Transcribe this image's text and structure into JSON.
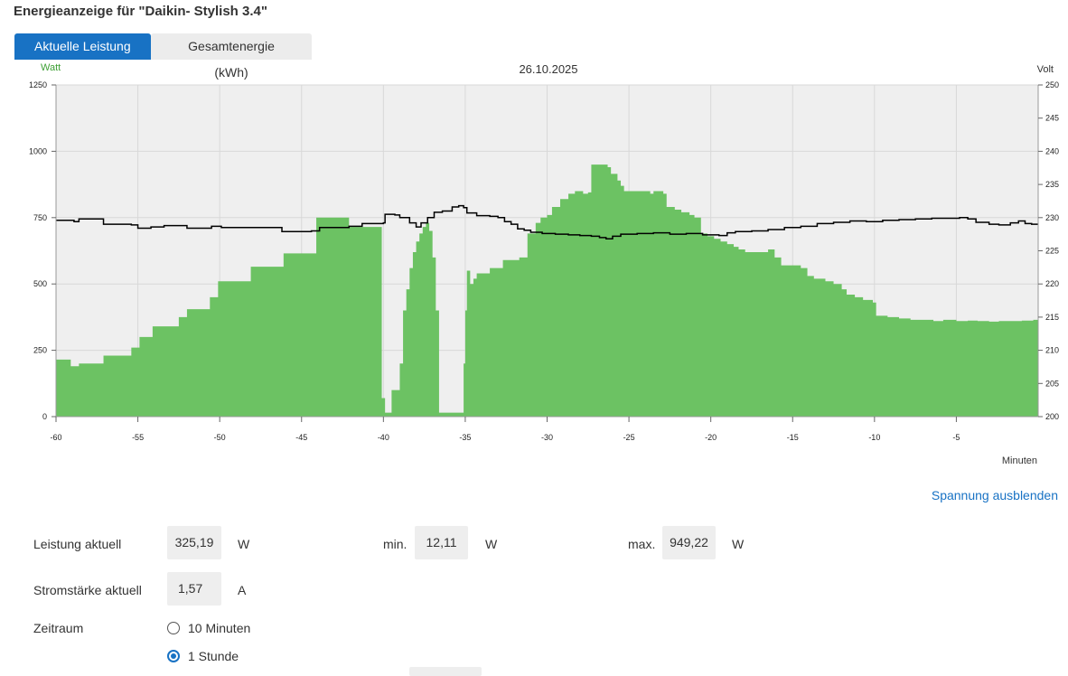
{
  "title": "Energieanzeige für \"Daikin- Stylish 3.4\"",
  "tabs": [
    {
      "label": "Aktuelle Leistung (Watt)",
      "active": true
    },
    {
      "label": "Gesamtenergie (kWh)",
      "active": false
    }
  ],
  "toggle_voltage": "Spannung ausblenden",
  "stats": {
    "power_label": "Leistung aktuell",
    "power_value": "325,19",
    "power_unit": "W",
    "min_label": "min.",
    "min_value": "12,11",
    "min_unit": "W",
    "max_label": "max.",
    "max_value": "949,22",
    "max_unit": "W",
    "current_label": "Stromstärke aktuell",
    "current_value": "1,57",
    "current_unit": "A"
  },
  "period": {
    "label": "Zeitraum",
    "options": [
      {
        "label": "10 Minuten",
        "selected": false
      },
      {
        "label": "1 Stunde",
        "selected": true
      }
    ]
  },
  "colors": {
    "accent": "#1872c4",
    "area": "#6cc263",
    "voltage": "#000000",
    "plot_bg": "#efefef"
  },
  "chart_data": {
    "type": "area",
    "title": "26.10.2025",
    "ylabel": "Watt",
    "y2label": "Volt",
    "xlabel": "Minuten",
    "xlim": [
      -60,
      0
    ],
    "ylim": [
      0,
      1250
    ],
    "y2lim": [
      200,
      250
    ],
    "xticks": [
      -60,
      -55,
      -50,
      -45,
      -40,
      -35,
      -30,
      -25,
      -20,
      -15,
      -10,
      -5
    ],
    "yticks": [
      0,
      250,
      500,
      750,
      1000,
      1250
    ],
    "y2ticks": [
      200,
      205,
      210,
      215,
      220,
      225,
      230,
      235,
      240,
      245,
      250
    ],
    "grid": true,
    "series": [
      {
        "type": "area",
        "axis": "left",
        "points": [
          [
            -60,
            215
          ],
          [
            -59.1,
            190
          ],
          [
            -58.6,
            200
          ],
          [
            -57.1,
            230
          ],
          [
            -55.4,
            260
          ],
          [
            -54.9,
            300
          ],
          [
            -54.1,
            340
          ],
          [
            -52.5,
            375
          ],
          [
            -52,
            405
          ],
          [
            -50.6,
            450
          ],
          [
            -50.1,
            510
          ],
          [
            -48.1,
            565
          ],
          [
            -46.1,
            615
          ],
          [
            -44.1,
            750
          ],
          [
            -42.1,
            715
          ],
          [
            -40.1,
            70
          ],
          [
            -39.9,
            15
          ],
          [
            -39.5,
            100
          ],
          [
            -39,
            200
          ],
          [
            -38.8,
            400
          ],
          [
            -38.6,
            480
          ],
          [
            -38.4,
            560
          ],
          [
            -38.2,
            620
          ],
          [
            -38,
            660
          ],
          [
            -37.8,
            690
          ],
          [
            -37.6,
            715
          ],
          [
            -37.4,
            730
          ],
          [
            -37.2,
            700
          ],
          [
            -37,
            600
          ],
          [
            -36.8,
            400
          ],
          [
            -36.6,
            15
          ],
          [
            -35.4,
            15
          ],
          [
            -35.1,
            200
          ],
          [
            -35,
            400
          ],
          [
            -34.9,
            550
          ],
          [
            -34.7,
            500
          ],
          [
            -34.5,
            520
          ],
          [
            -34.3,
            540
          ],
          [
            -33.5,
            560
          ],
          [
            -32.7,
            590
          ],
          [
            -31.7,
            600
          ],
          [
            -31.2,
            690
          ],
          [
            -30.7,
            730
          ],
          [
            -30.4,
            750
          ],
          [
            -30,
            760
          ],
          [
            -29.7,
            790
          ],
          [
            -29.2,
            820
          ],
          [
            -28.7,
            840
          ],
          [
            -28.3,
            850
          ],
          [
            -27.8,
            840
          ],
          [
            -27.5,
            845
          ],
          [
            -27.3,
            950
          ],
          [
            -26.3,
            940
          ],
          [
            -26.1,
            915
          ],
          [
            -25.7,
            890
          ],
          [
            -25.5,
            870
          ],
          [
            -25.3,
            850
          ],
          [
            -23.7,
            840
          ],
          [
            -23.5,
            850
          ],
          [
            -22.9,
            840
          ],
          [
            -22.7,
            790
          ],
          [
            -22.2,
            780
          ],
          [
            -21.8,
            770
          ],
          [
            -21.3,
            760
          ],
          [
            -21,
            750
          ],
          [
            -20.6,
            690
          ],
          [
            -20.2,
            680
          ],
          [
            -19.8,
            670
          ],
          [
            -19.4,
            660
          ],
          [
            -19,
            650
          ],
          [
            -18.6,
            640
          ],
          [
            -18.3,
            630
          ],
          [
            -17.9,
            620
          ],
          [
            -17,
            620
          ],
          [
            -16.5,
            630
          ],
          [
            -16.1,
            600
          ],
          [
            -15.7,
            570
          ],
          [
            -15,
            570
          ],
          [
            -14.5,
            560
          ],
          [
            -14.1,
            530
          ],
          [
            -13.7,
            520
          ],
          [
            -13,
            510
          ],
          [
            -12.5,
            500
          ],
          [
            -12,
            480
          ],
          [
            -11.7,
            460
          ],
          [
            -11.2,
            450
          ],
          [
            -10.7,
            440
          ],
          [
            -10.1,
            430
          ],
          [
            -9.9,
            380
          ],
          [
            -9.2,
            375
          ],
          [
            -8.5,
            370
          ],
          [
            -7.8,
            365
          ],
          [
            -7,
            365
          ],
          [
            -6.4,
            360
          ],
          [
            -5.8,
            365
          ],
          [
            -5,
            360
          ],
          [
            -4.3,
            362
          ],
          [
            -3.7,
            360
          ],
          [
            -3,
            358
          ],
          [
            -2.4,
            360
          ],
          [
            -1.7,
            360
          ],
          [
            -1,
            362
          ],
          [
            -0.3,
            365
          ],
          [
            0,
            365
          ]
        ]
      },
      {
        "type": "line",
        "axis": "right",
        "points": [
          [
            -60,
            229.6
          ],
          [
            -58.9,
            229.4
          ],
          [
            -58.6,
            229.8
          ],
          [
            -57.1,
            229
          ],
          [
            -55.4,
            228.9
          ],
          [
            -55,
            228.4
          ],
          [
            -54.2,
            228.6
          ],
          [
            -53.4,
            228.8
          ],
          [
            -52,
            228.4
          ],
          [
            -50.5,
            228.7
          ],
          [
            -49.9,
            228.5
          ],
          [
            -48,
            228.5
          ],
          [
            -46.2,
            227.9
          ],
          [
            -44.4,
            228
          ],
          [
            -43.9,
            228.5
          ],
          [
            -42.1,
            228.7
          ],
          [
            -41.3,
            229.1
          ],
          [
            -40,
            229.2
          ],
          [
            -39.9,
            230.5
          ],
          [
            -39.3,
            230.4
          ],
          [
            -39,
            230
          ],
          [
            -38.4,
            229.2
          ],
          [
            -38,
            228.6
          ],
          [
            -37.7,
            229.2
          ],
          [
            -37.3,
            230
          ],
          [
            -36.9,
            230.8
          ],
          [
            -36.4,
            231
          ],
          [
            -35.8,
            231.6
          ],
          [
            -35.4,
            231.8
          ],
          [
            -35.1,
            231.5
          ],
          [
            -34.9,
            230.7
          ],
          [
            -34.3,
            230.3
          ],
          [
            -33.5,
            230.2
          ],
          [
            -33,
            230
          ],
          [
            -32.6,
            229.4
          ],
          [
            -32.2,
            229
          ],
          [
            -31.8,
            228.3
          ],
          [
            -31.4,
            228.1
          ],
          [
            -31,
            227.8
          ],
          [
            -30.3,
            227.6
          ],
          [
            -29.5,
            227.5
          ],
          [
            -28.7,
            227.4
          ],
          [
            -28,
            227.3
          ],
          [
            -27.3,
            227.2
          ],
          [
            -26.8,
            227
          ],
          [
            -26.4,
            226.8
          ],
          [
            -26,
            227.2
          ],
          [
            -25.5,
            227.5
          ],
          [
            -24.5,
            227.6
          ],
          [
            -23.5,
            227.7
          ],
          [
            -22.5,
            227.5
          ],
          [
            -21.5,
            227.6
          ],
          [
            -20.5,
            227.4
          ],
          [
            -19.5,
            227.3
          ],
          [
            -19,
            227.7
          ],
          [
            -18.5,
            227.9
          ],
          [
            -17.5,
            228
          ],
          [
            -16.5,
            228.2
          ],
          [
            -15.5,
            228.5
          ],
          [
            -14.5,
            228.7
          ],
          [
            -13.5,
            229.1
          ],
          [
            -12.5,
            229.3
          ],
          [
            -11.5,
            229.5
          ],
          [
            -10.5,
            229.4
          ],
          [
            -9.5,
            229.6
          ],
          [
            -8.5,
            229.7
          ],
          [
            -7.5,
            229.8
          ],
          [
            -6.5,
            229.9
          ],
          [
            -5.5,
            229.9
          ],
          [
            -4.8,
            230
          ],
          [
            -4.3,
            229.8
          ],
          [
            -3.8,
            229.3
          ],
          [
            -3,
            229
          ],
          [
            -2.4,
            228.9
          ],
          [
            -1.7,
            229.2
          ],
          [
            -1.2,
            229.5
          ],
          [
            -0.8,
            229.1
          ],
          [
            -0.4,
            229
          ],
          [
            0,
            229
          ]
        ]
      }
    ]
  }
}
